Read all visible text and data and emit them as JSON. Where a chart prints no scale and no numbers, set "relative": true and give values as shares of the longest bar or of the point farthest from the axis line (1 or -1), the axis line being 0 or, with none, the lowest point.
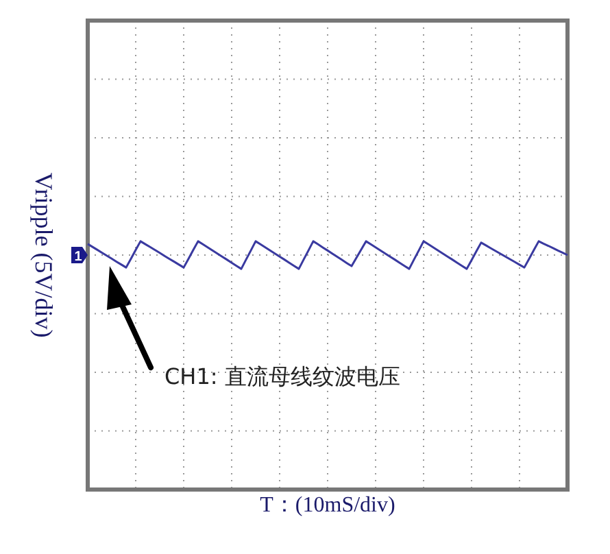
{
  "chart_data": {
    "type": "line",
    "relative": true,
    "ylabel": "Vripple (5V/div)",
    "grid": true,
    "marker": "none",
    "line_style": "solid",
    "categories": [
      null,
      null,
      null,
      null,
      null,
      null,
      null,
      null,
      null,
      null,
      null,
      null,
      null,
      null,
      null,
      null,
      null,
      null,
      null,
      null,
      null,
      null,
      null,
      null,
      null,
      null,
      null,
      null,
      null,
      null,
      null,
      null,
      null,
      null,
      null,
      null,
      null,
      null,
      null,
      null,
      null,
      null,
      null,
      null,
      null,
      null,
      null,
      null,
      null,
      null,
      null,
      null,
      null,
      null,
      null,
      null,
      null,
      null,
      null,
      null,
      null,
      null,
      null,
      null,
      null,
      null,
      null,
      null,
      null,
      null,
      null,
      null,
      null,
      null,
      null,
      null,
      null,
      null,
      null,
      null,
      null,
      null,
      null,
      null,
      null,
      null,
      null,
      null,
      null,
      null,
      null,
      null,
      null,
      null,
      null,
      null,
      null,
      null,
      null,
      null,
      null
    ],
    "series": [
      {
        "color": "#3a3aa0",
        "values": [
          0.8,
          0.59,
          0.38,
          0.16,
          -0.05,
          -0.26,
          -0.48,
          -0.69,
          -0.9,
          -0.27,
          0.37,
          1,
          0.79,
          0.58,
          0.37,
          0.16,
          -0.06,
          -0.27,
          -0.48,
          -0.69,
          -0.9,
          -0.27,
          0.37,
          1,
          0.78,
          0.56,
          0.33,
          0.11,
          -0.11,
          -0.33,
          -0.56,
          -0.78,
          -1,
          -0.33,
          0.33,
          1,
          0.78,
          0.56,
          0.33,
          0.11,
          -0.11,
          -0.33,
          -0.56,
          -0.78,
          -1,
          -0.33,
          0.33,
          1,
          0.78,
          0.55,
          0.33,
          0.1,
          -0.13,
          -0.35,
          -0.58,
          -0.8,
          -0.2,
          0.4,
          1,
          0.78,
          0.56,
          0.33,
          0.11,
          -0.11,
          -0.33,
          -0.56,
          -0.78,
          -1,
          -0.33,
          0.33,
          1,
          0.78,
          0.56,
          0.33,
          0.11,
          -0.11,
          -0.33,
          -0.56,
          -0.78,
          -1,
          -0.37,
          0.27,
          0.9,
          0.7,
          0.5,
          0.3,
          0.1,
          -0.1,
          -0.3,
          -0.5,
          -0.7,
          -0.9,
          -0.27,
          0.37,
          1,
          0.83,
          0.67,
          0.5,
          0.33,
          0.17,
          0
        ]
      }
    ],
    "annotations": [
      "1",
      "CH1:  直流母线纹波电压",
      "T：(10mS/div)"
    ]
  }
}
